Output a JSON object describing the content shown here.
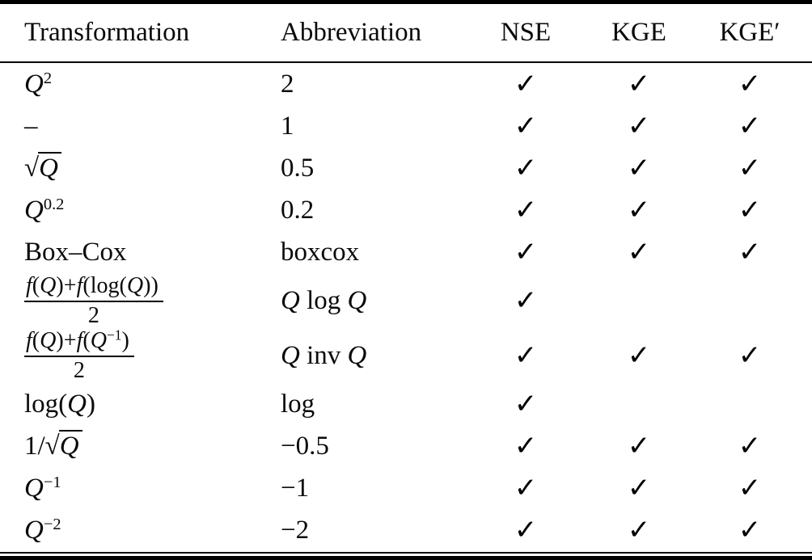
{
  "colors": {
    "ink": "#0a0a0a",
    "background": "#ffffff",
    "rule": "#000000"
  },
  "table": {
    "headers": [
      {
        "id": "transformation",
        "label": "Transformation"
      },
      {
        "id": "abbreviation",
        "label": "Abbreviation"
      },
      {
        "id": "nse",
        "label": "NSE"
      },
      {
        "id": "kge",
        "label": "KGE"
      },
      {
        "id": "kge_prime",
        "label": "KGE′"
      }
    ],
    "check_glyph": "✓",
    "rows": [
      {
        "transformation": "Q^{2}",
        "abbreviation": "2",
        "nse": true,
        "kge": true,
        "kge_prime": true
      },
      {
        "transformation": "–",
        "abbreviation": "1",
        "nse": true,
        "kge": true,
        "kge_prime": true
      },
      {
        "transformation": "√{Q}",
        "abbreviation": "0.5",
        "nse": true,
        "kge": true,
        "kge_prime": true
      },
      {
        "transformation": "Q^{0.2}",
        "abbreviation": "0.2",
        "nse": true,
        "kge": true,
        "kge_prime": true
      },
      {
        "transformation": "Box–Cox",
        "abbreviation": "boxcox",
        "nse": true,
        "kge": true,
        "kge_prime": true
      },
      {
        "transformation": "frac{f(Q)+f(log(Q))}{2}",
        "abbreviation": "Q log Q",
        "nse": true,
        "kge": false,
        "kge_prime": false
      },
      {
        "transformation": "frac{f(Q)+f(Q^{−1})}{2}",
        "abbreviation": "Q inv Q",
        "nse": true,
        "kge": true,
        "kge_prime": true
      },
      {
        "transformation": "log(Q)",
        "abbreviation": "log",
        "nse": true,
        "kge": false,
        "kge_prime": false
      },
      {
        "transformation": "1/√{Q}",
        "abbreviation": "−0.5",
        "nse": true,
        "kge": true,
        "kge_prime": true
      },
      {
        "transformation": "Q^{−1}",
        "abbreviation": "−1",
        "nse": true,
        "kge": true,
        "kge_prime": true
      },
      {
        "transformation": "Q^{−2}",
        "abbreviation": "−2",
        "nse": true,
        "kge": true,
        "kge_prime": true
      }
    ]
  }
}
